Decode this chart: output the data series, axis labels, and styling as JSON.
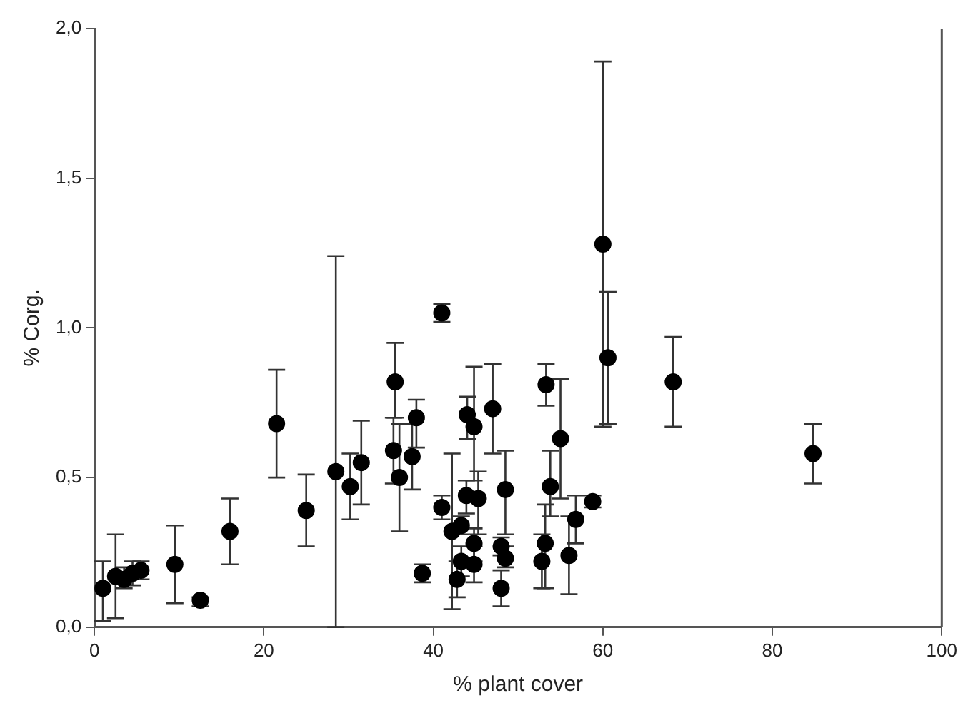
{
  "chart_data": {
    "type": "scatter",
    "xlabel": "% plant cover",
    "ylabel": "% Corg.",
    "xlim": [
      0,
      100
    ],
    "xticks": [
      0,
      20,
      40,
      60,
      80,
      100
    ],
    "ylim": [
      0,
      2
    ],
    "yticks": [
      {
        "value": 0,
        "label": "0,0"
      },
      {
        "value": 0.5,
        "label": "0,5"
      },
      {
        "value": 1,
        "label": "1,0"
      },
      {
        "value": 1.5,
        "label": "1,5"
      },
      {
        "value": 2,
        "label": "2,0"
      }
    ],
    "grid": false,
    "legend": false,
    "marker": "circle",
    "series": [
      {
        "color": "#000000",
        "x": [
          1,
          2.5,
          3.5,
          4.5,
          5.5,
          9.5,
          12.5,
          16,
          21.5,
          25,
          28.5,
          30.2,
          31.5,
          35.5,
          35.3,
          36,
          37.5,
          38,
          38.7,
          41,
          41,
          42.2,
          42.8,
          43.3,
          43.3,
          44,
          43.9,
          44.8,
          44.8,
          45.3,
          44.8,
          47,
          48,
          48,
          48.5,
          48.5,
          52.8,
          53.2,
          53.3,
          53.8,
          55,
          56,
          56.8,
          58.8,
          60,
          60.6,
          68.3,
          84.8
        ],
        "values": [
          0.13,
          0.17,
          0.16,
          0.18,
          0.19,
          0.21,
          0.09,
          0.32,
          0.68,
          0.39,
          0.52,
          0.47,
          0.55,
          0.82,
          0.59,
          0.5,
          0.57,
          0.7,
          0.18,
          1.05,
          0.4,
          0.32,
          0.16,
          0.34,
          0.22,
          0.71,
          0.44,
          0.67,
          0.28,
          0.43,
          0.21,
          0.73,
          0.27,
          0.13,
          0.46,
          0.23,
          0.22,
          0.28,
          0.81,
          0.47,
          0.63,
          0.24,
          0.36,
          0.42,
          1.28,
          0.9,
          0.82,
          0.58
        ],
        "errors": [
          [
            0.02,
            0.22
          ],
          [
            0.03,
            0.31
          ],
          [
            0.13,
            0.2
          ],
          [
            0.14,
            0.22
          ],
          [
            0.16,
            0.22
          ],
          [
            0.08,
            0.34
          ],
          [
            0.07,
            0.1
          ],
          [
            0.21,
            0.43
          ],
          [
            0.5,
            0.86
          ],
          [
            0.27,
            0.51
          ],
          [
            0,
            1.24
          ],
          [
            0.36,
            0.58
          ],
          [
            0.41,
            0.69
          ],
          [
            0.7,
            0.95
          ],
          [
            0.48,
            0.7
          ],
          [
            0.32,
            0.68
          ],
          [
            0.46,
            0.68
          ],
          [
            0.6,
            0.76
          ],
          [
            0.15,
            0.21
          ],
          [
            1.02,
            1.08
          ],
          [
            0.36,
            0.44
          ],
          [
            0.06,
            0.58
          ],
          [
            0.1,
            0.22
          ],
          [
            0.31,
            0.37
          ],
          [
            0.17,
            0.27
          ],
          [
            0.63,
            0.77
          ],
          [
            0.38,
            0.49
          ],
          [
            0.49,
            0.87
          ],
          [
            0.22,
            0.33
          ],
          [
            0.31,
            0.52
          ],
          [
            0.15,
            0.27
          ],
          [
            0.58,
            0.88
          ],
          [
            0.24,
            0.3
          ],
          [
            0.07,
            0.19
          ],
          [
            0.31,
            0.59
          ],
          [
            0.2,
            0.27
          ],
          [
            0.13,
            0.31
          ],
          [
            0.13,
            0.41
          ],
          [
            0.74,
            0.88
          ],
          [
            0.37,
            0.59
          ],
          [
            0.43,
            0.83
          ],
          [
            0.11,
            0.37
          ],
          [
            0.28,
            0.44
          ],
          [
            0.4,
            0.44
          ],
          [
            0.67,
            1.89
          ],
          [
            0.68,
            1.12
          ],
          [
            0.67,
            0.97
          ],
          [
            0.48,
            0.68
          ]
        ]
      }
    ]
  }
}
